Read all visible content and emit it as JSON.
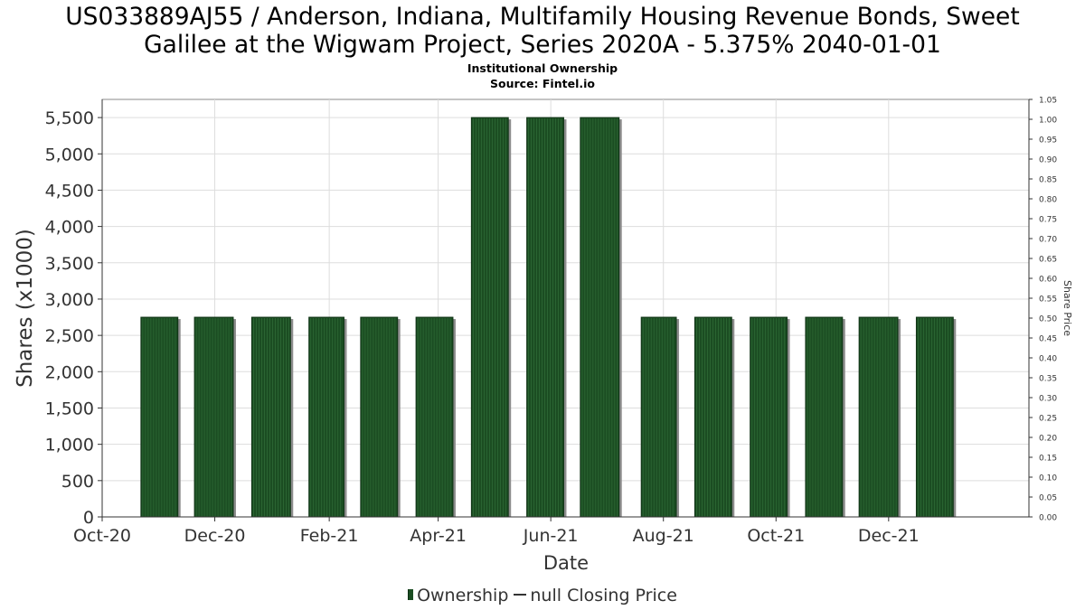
{
  "header": {
    "title_line1": "US033889AJ55 / Anderson, Indiana, Multifamily Housing Revenue Bonds, Sweet",
    "title_line2": "Galilee at the Wigwam Project, Series 2020A - 5.375% 2040-01-01",
    "subtitle": "Institutional Ownership",
    "source": "Source: Fintel.io"
  },
  "legend": {
    "ownership_label": "Ownership",
    "price_label": "null Closing Price"
  },
  "colors": {
    "bar_fill": "#1b4d22",
    "bar_shadow": "#8c8c8c",
    "grid": "#dddddd",
    "axis_text": "#333333"
  },
  "chart_data": {
    "type": "bar",
    "xlabel": "Date",
    "ylabel": "Shares (x1000)",
    "y2label": "Share Price",
    "ylim": [
      0,
      5750
    ],
    "y2lim": [
      0,
      1.05
    ],
    "yticks": [
      0,
      500,
      1000,
      1500,
      2000,
      2500,
      3000,
      3500,
      4000,
      4500,
      5000,
      5500
    ],
    "yticklabels": [
      "0",
      "500",
      "1,000",
      "1,500",
      "2,000",
      "2,500",
      "3,000",
      "3,500",
      "4,000",
      "4,500",
      "5,000",
      "5,500"
    ],
    "y2ticks": [
      "0.00",
      "0.05",
      "0.10",
      "0.15",
      "0.20",
      "0.25",
      "0.30",
      "0.35",
      "0.40",
      "0.45",
      "0.50",
      "0.55",
      "0.60",
      "0.65",
      "0.70",
      "0.75",
      "0.80",
      "0.85",
      "0.90",
      "0.95",
      "1.00",
      "1.05"
    ],
    "xlim": [
      "2020-10-01",
      "2022-02-15"
    ],
    "xticks": [
      "2020-10-01",
      "2020-12-01",
      "2021-02-01",
      "2021-04-01",
      "2021-06-01",
      "2021-08-01",
      "2021-10-01",
      "2021-12-01"
    ],
    "xticklabels": [
      "Oct-20",
      "Dec-20",
      "Feb-21",
      "Apr-21",
      "Jun-21",
      "Aug-21",
      "Oct-21",
      "Dec-21"
    ],
    "grid": true,
    "legend_position": "bottom",
    "series": [
      {
        "name": "Ownership",
        "bars": [
          {
            "start": "2020-10-22",
            "end": "2020-11-11",
            "value": 2750
          },
          {
            "start": "2020-11-20",
            "end": "2020-12-11",
            "value": 2750
          },
          {
            "start": "2020-12-21",
            "end": "2021-01-11",
            "value": 2750
          },
          {
            "start": "2021-01-21",
            "end": "2021-02-09",
            "value": 2750
          },
          {
            "start": "2021-02-18",
            "end": "2021-03-10",
            "value": 2750
          },
          {
            "start": "2021-03-20",
            "end": "2021-04-09",
            "value": 2750
          },
          {
            "start": "2021-04-19",
            "end": "2021-05-09",
            "value": 5500
          },
          {
            "start": "2021-05-19",
            "end": "2021-06-08",
            "value": 5500
          },
          {
            "start": "2021-06-17",
            "end": "2021-07-08",
            "value": 5500
          },
          {
            "start": "2021-07-20",
            "end": "2021-08-08",
            "value": 2750
          },
          {
            "start": "2021-08-18",
            "end": "2021-09-07",
            "value": 2750
          },
          {
            "start": "2021-09-17",
            "end": "2021-10-07",
            "value": 2750
          },
          {
            "start": "2021-10-17",
            "end": "2021-11-06",
            "value": 2750
          },
          {
            "start": "2021-11-15",
            "end": "2021-12-06",
            "value": 2750
          },
          {
            "start": "2021-12-16",
            "end": "2022-01-05",
            "value": 2750
          }
        ]
      },
      {
        "name": "null Closing Price",
        "values": []
      }
    ]
  }
}
